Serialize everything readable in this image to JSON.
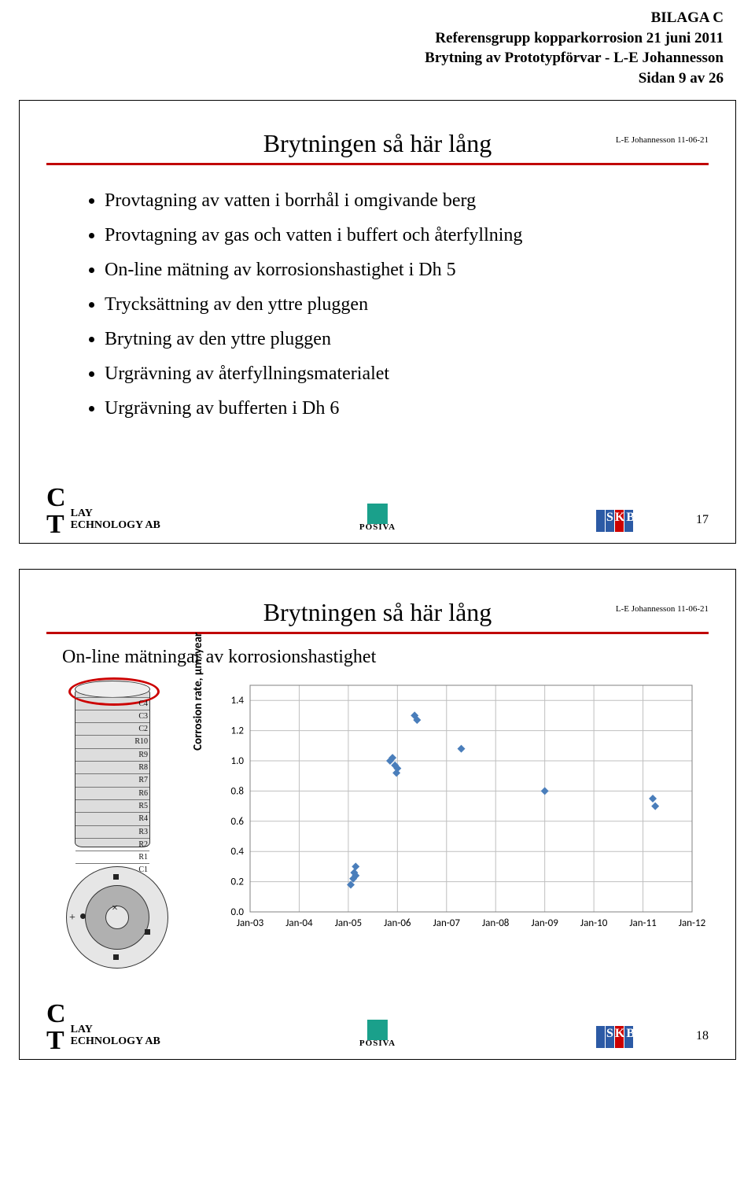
{
  "header": {
    "line1": "BILAGA C",
    "line2": "Referensgrupp kopparkorrosion 21 juni 2011",
    "line3": "Brytning av Prototypförvar - L-E Johannesson",
    "line4": "Sidan 9 av 26"
  },
  "slide1": {
    "title": "Brytningen så här lång",
    "note": "L-E Johannesson 11-06-21",
    "bullets": [
      "Provtagning av vatten i borrhål i omgivande berg",
      "Provtagning av gas och vatten i buffert och återfyllning",
      "On-line mätning av korrosionshastighet i Dh 5",
      "Trycksättning av den yttre pluggen",
      "Brytning av den yttre pluggen",
      "Urgrävning av återfyllningsmaterialet",
      "Urgrävning av bufferten i Dh 6"
    ],
    "page_num": "17",
    "ct_top": "LAY",
    "ct_bottom": "ECHNOLOGY AB",
    "posiva": "POSIVA"
  },
  "slide2": {
    "title": "Brytningen så här lång",
    "note": "L-E Johannesson 11-06-21",
    "subtitle": "On-line mätningar av korrosionshastighet",
    "page_num": "18",
    "cyl_labels": [
      "C4",
      "C3",
      "C2",
      "R10",
      "R9",
      "R8",
      "R7",
      "R6",
      "R5",
      "R4",
      "R3",
      "R2",
      "R1",
      "C1"
    ],
    "chart": {
      "type": "scatter",
      "ylabel": "Corrosion rate, µm/year",
      "ylim": [
        0.0,
        1.5
      ],
      "yticks": [
        0.0,
        0.2,
        0.4,
        0.6,
        0.8,
        1.0,
        1.2,
        1.4
      ],
      "xticks": [
        "Jan-03",
        "Jan-04",
        "Jan-05",
        "Jan-06",
        "Jan-07",
        "Jan-08",
        "Jan-09",
        "Jan-10",
        "Jan-11",
        "Jan-12"
      ],
      "marker_color": "#4a7ebb",
      "grid_color": "#bfbfbf",
      "axis_color": "#808080",
      "background": "#ffffff",
      "points": [
        {
          "x": 2.05,
          "y": 0.18
        },
        {
          "x": 2.1,
          "y": 0.22
        },
        {
          "x": 2.12,
          "y": 0.26
        },
        {
          "x": 2.15,
          "y": 0.24
        },
        {
          "x": 2.15,
          "y": 0.3
        },
        {
          "x": 2.85,
          "y": 1.0
        },
        {
          "x": 2.9,
          "y": 1.02
        },
        {
          "x": 2.95,
          "y": 0.97
        },
        {
          "x": 2.98,
          "y": 0.92
        },
        {
          "x": 3.0,
          "y": 0.95
        },
        {
          "x": 3.35,
          "y": 1.3
        },
        {
          "x": 3.4,
          "y": 1.27
        },
        {
          "x": 4.3,
          "y": 1.08
        },
        {
          "x": 6.0,
          "y": 0.8
        },
        {
          "x": 8.2,
          "y": 0.75
        },
        {
          "x": 8.25,
          "y": 0.7
        }
      ]
    }
  }
}
